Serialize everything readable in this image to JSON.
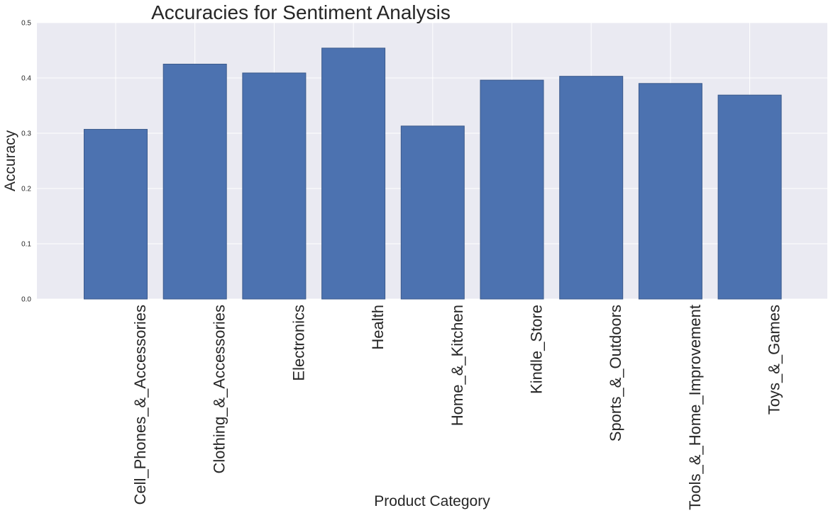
{
  "chart_data": {
    "type": "bar",
    "title": "Accuracies for Sentiment Analysis",
    "xlabel": "Product Category",
    "ylabel": "Accuracy",
    "categories": [
      "Cell_Phones_&_Accessories",
      "Clothing_&_Accessories",
      "Electronics",
      "Health",
      "Home_&_Kitchen",
      "Kindle_Store",
      "Sports_&_Outdoors",
      "Tools_&_Home_Improvement",
      "Toys_&_Games"
    ],
    "values": [
      0.307,
      0.425,
      0.409,
      0.454,
      0.313,
      0.396,
      0.403,
      0.39,
      0.369
    ],
    "ylim": [
      0,
      0.5
    ],
    "yticks": [
      "0.0",
      "0.1",
      "0.2",
      "0.3",
      "0.4",
      "0.5"
    ],
    "grid": true,
    "colors": {
      "bar": "#4c72b0",
      "bar_edge": "#3b5a8c",
      "plot_background": "#eaeaf2",
      "grid": "#ffffff"
    }
  }
}
